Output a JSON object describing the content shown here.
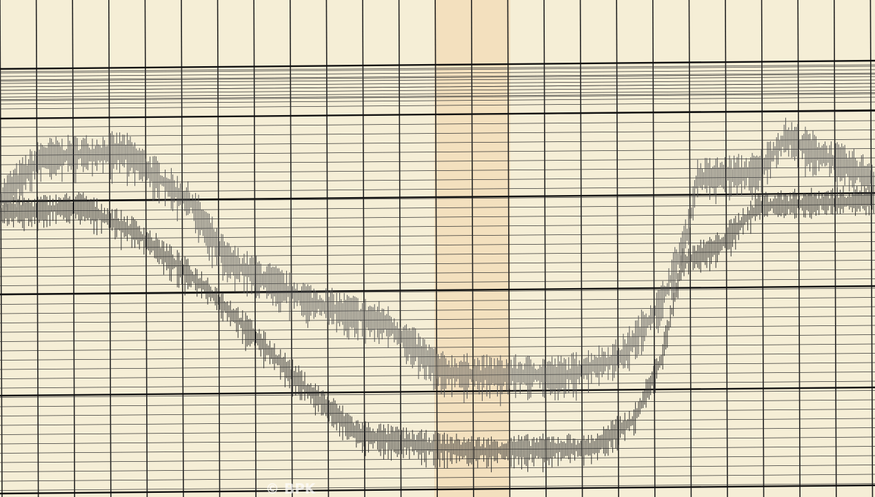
{
  "watermark": "© BPK"
}
